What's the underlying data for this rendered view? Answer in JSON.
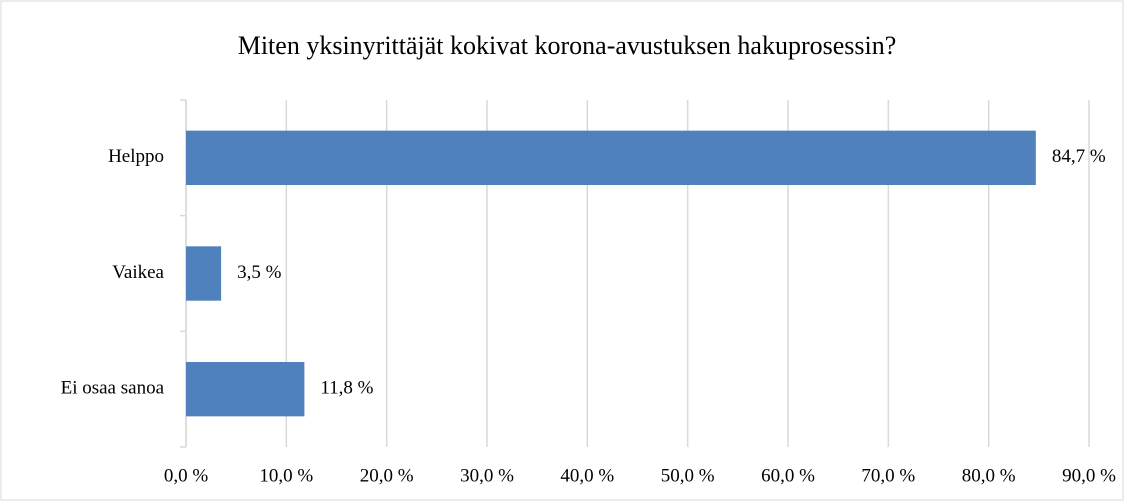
{
  "chart_data": {
    "type": "bar",
    "orientation": "horizontal",
    "title": "Miten yksinyrittäjät kokivat korona-avustuksen hakuprosessin?",
    "categories": [
      "Helppo",
      "Vaikea",
      "Ei osaa sanoa"
    ],
    "values": [
      84.7,
      3.5,
      11.8
    ],
    "value_labels": [
      "84,7 %",
      "3,5 %",
      "11,8 %"
    ],
    "color": "#4f81bd",
    "xlim": [
      0,
      90
    ],
    "xticks": [
      {
        "value": 0,
        "label": "0,0 %"
      },
      {
        "value": 10,
        "label": "10,0 %"
      },
      {
        "value": 20,
        "label": "20,0 %"
      },
      {
        "value": 30,
        "label": "30,0 %"
      },
      {
        "value": 40,
        "label": "40,0 %"
      },
      {
        "value": 50,
        "label": "50,0 %"
      },
      {
        "value": 60,
        "label": "60,0 %"
      },
      {
        "value": 70,
        "label": "70,0 %"
      },
      {
        "value": 80,
        "label": "80,0 %"
      },
      {
        "value": 90,
        "label": "90,0 %"
      }
    ],
    "grid": true
  }
}
